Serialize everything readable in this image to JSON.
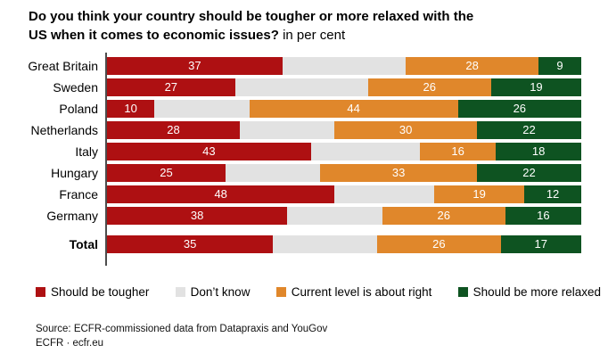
{
  "title": {
    "line1": "Do you think your country should be tougher or more relaxed with the",
    "line2_bold": "US when it comes to economic issues?",
    "suffix": "in per cent"
  },
  "chart_data": {
    "type": "bar",
    "orientation": "horizontal",
    "stacked": true,
    "unit": "per cent",
    "xlim": [
      0,
      100
    ],
    "grid": false,
    "legend_position": "bottom",
    "categories": [
      "Great Britain",
      "Sweden",
      "Poland",
      "Netherlands",
      "Italy",
      "Hungary",
      "France",
      "Germany",
      "Total"
    ],
    "bold_categories": [
      "Total"
    ],
    "series": [
      {
        "name": "Should be tougher",
        "color": "#AE1012",
        "labels_shown": true,
        "values": [
          37,
          27,
          10,
          28,
          43,
          25,
          48,
          38,
          35
        ]
      },
      {
        "name": "Don’t know",
        "color": "#E2E2E2",
        "labels_shown": false,
        "values": [
          26,
          28,
          20,
          20,
          23,
          20,
          21,
          20,
          22
        ]
      },
      {
        "name": "Current level is about right",
        "color": "#E0872B",
        "labels_shown": true,
        "values": [
          28,
          26,
          44,
          30,
          16,
          33,
          19,
          26,
          26
        ]
      },
      {
        "name": "Should be more relaxed",
        "color": "#0E5321",
        "labels_shown": true,
        "values": [
          9,
          19,
          26,
          22,
          18,
          22,
          12,
          16,
          17
        ]
      }
    ]
  },
  "footer": {
    "source": "Source: ECFR-commissioned data from Datapraxis and YouGov",
    "credit": "ECFR · ecfr.eu"
  }
}
